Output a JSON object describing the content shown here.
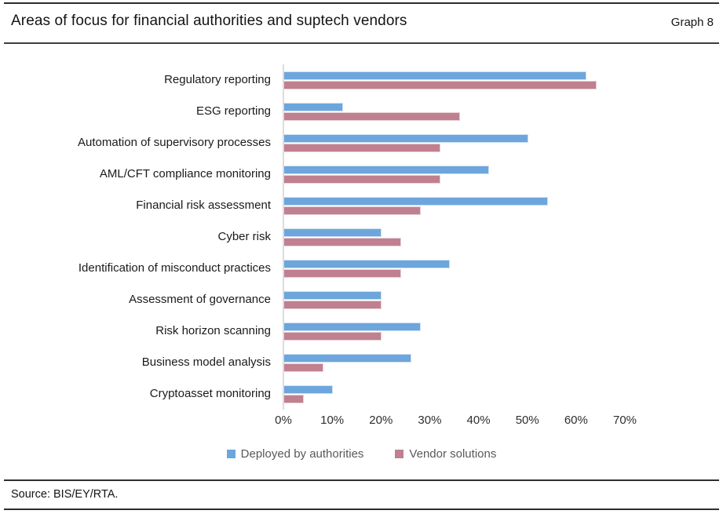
{
  "header": {
    "title": "Areas of focus for financial authorities and suptech vendors",
    "graph_label": "Graph 8"
  },
  "source": "Source: BIS/EY/RTA.",
  "colors": {
    "authorities_blue": "#6CA6DC",
    "vendors_rose": "#C0808F",
    "axis_line": "#dcdcdc",
    "legend_text": "#595959",
    "rule_dark": "#2e2e2e"
  },
  "chart_data": {
    "type": "bar",
    "orientation": "horizontal",
    "title": "Areas of focus for financial authorities and suptech vendors",
    "categories": [
      "Regulatory reporting",
      "ESG reporting",
      "Automation of supervisory processes",
      "AML/CFT compliance monitoring",
      "Financial risk assessment",
      "Cyber risk",
      "Identification of misconduct practices",
      "Assessment of governance",
      "Risk horizon scanning",
      "Business model analysis",
      "Cryptoasset monitoring"
    ],
    "series": [
      {
        "name": "Deployed by authorities",
        "color": "#6CA6DC",
        "values": [
          62,
          12,
          50,
          42,
          54,
          20,
          34,
          20,
          28,
          26,
          10
        ]
      },
      {
        "name": "Vendor solutions",
        "color": "#C0808F",
        "values": [
          64,
          36,
          32,
          32,
          28,
          24,
          24,
          20,
          20,
          8,
          4
        ]
      }
    ],
    "x_ticks": [
      "0%",
      "10%",
      "20%",
      "30%",
      "40%",
      "50%",
      "60%",
      "70%"
    ],
    "xlim": [
      0,
      70
    ],
    "unit": "%",
    "grid": false,
    "legend_position": "bottom"
  }
}
